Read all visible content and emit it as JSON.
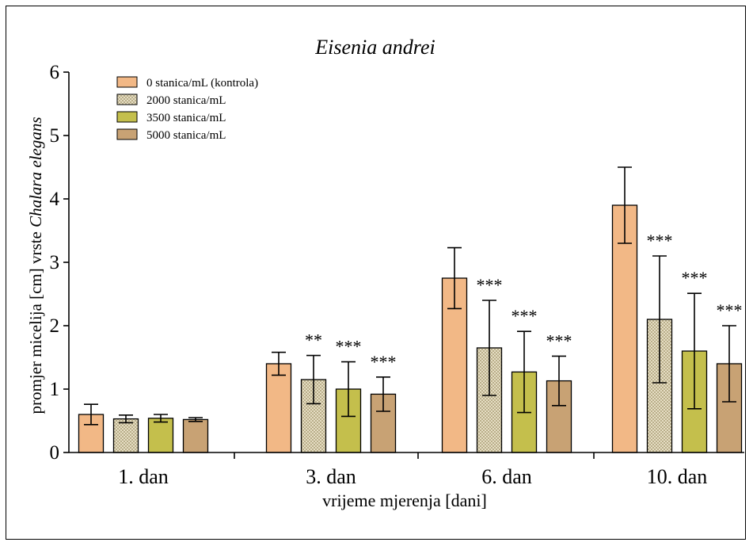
{
  "chart_data": {
    "type": "bar",
    "title": "Eisenia andrei",
    "xlabel": "vrijeme mjerenja [dani]",
    "ylabel_prefix": "promjer micelija [cm] vrste ",
    "ylabel_species": "Chalara elegans",
    "ylim": [
      0,
      6
    ],
    "yticks": [
      "0",
      "1",
      "2",
      "3",
      "4",
      "5",
      "6"
    ],
    "categories": [
      "1. dan",
      "3. dan",
      "6. dan",
      "10. dan"
    ],
    "legend_position": "top-left",
    "series": [
      {
        "name": "0 stanica/mL (kontrola)",
        "color": "#f2b886",
        "pattern": "solid",
        "values": [
          0.6,
          1.4,
          2.75,
          3.9
        ],
        "errors": [
          0.16,
          0.18,
          0.48,
          0.6
        ],
        "significance": [
          "",
          "",
          "",
          ""
        ]
      },
      {
        "name": "2000 stanica/mL",
        "color": "#dcd2b2",
        "pattern": "checker",
        "values": [
          0.53,
          1.15,
          1.65,
          2.1
        ],
        "errors": [
          0.06,
          0.38,
          0.75,
          1.0
        ],
        "significance": [
          "",
          "**",
          "***",
          "***"
        ]
      },
      {
        "name": "3500 stanica/mL",
        "color": "#c4bf4c",
        "pattern": "solid",
        "values": [
          0.54,
          1.0,
          1.27,
          1.6
        ],
        "errors": [
          0.06,
          0.43,
          0.64,
          0.91
        ],
        "significance": [
          "",
          "***",
          "***",
          "***"
        ]
      },
      {
        "name": "5000 stanica/mL",
        "color": "#c8a274",
        "pattern": "solid",
        "values": [
          0.52,
          0.92,
          1.13,
          1.4
        ],
        "errors": [
          0.03,
          0.27,
          0.39,
          0.6
        ],
        "significance": [
          "",
          "***",
          "***",
          "***"
        ]
      }
    ]
  }
}
